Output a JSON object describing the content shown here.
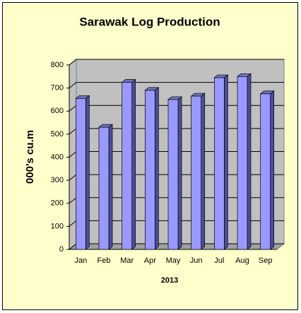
{
  "chart_data": {
    "type": "bar",
    "title": "Sarawak Log Production",
    "y_label": "000's cu.m",
    "x_label": "2013",
    "categories": [
      "Jan",
      "Feb",
      "Mar",
      "Apr",
      "May",
      "Jun",
      "Jul",
      "Aug",
      "Sep"
    ],
    "values": [
      655,
      530,
      725,
      690,
      650,
      665,
      745,
      750,
      675
    ],
    "color": "#9999ff",
    "ylim": [
      0,
      800
    ],
    "yticks": [
      0,
      100,
      200,
      300,
      400,
      500,
      600,
      700,
      800
    ],
    "grid": true
  }
}
